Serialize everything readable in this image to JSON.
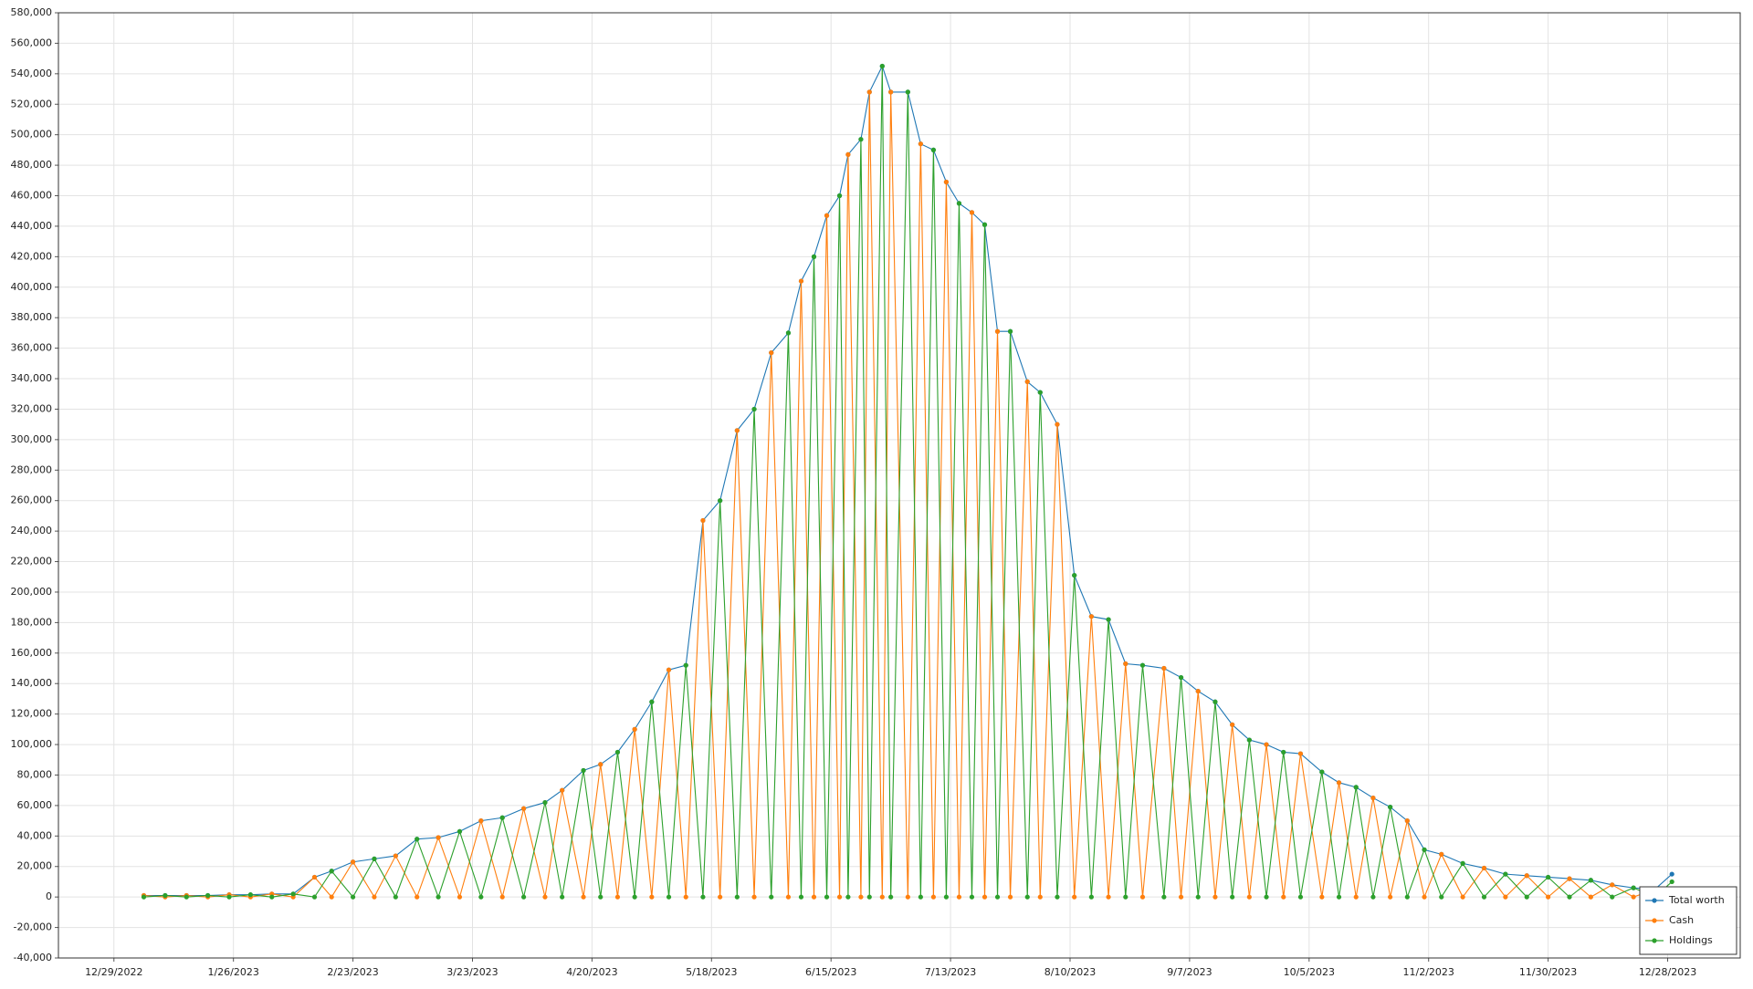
{
  "chart_data": {
    "type": "line",
    "x": [
      "1/5/2023",
      "1/10/2023",
      "1/15/2023",
      "1/20/2023",
      "1/25/2023",
      "1/30/2023",
      "2/4/2023",
      "2/9/2023",
      "2/14/2023",
      "2/18/2023",
      "2/23/2023",
      "2/28/2023",
      "3/5/2023",
      "3/10/2023",
      "3/15/2023",
      "3/20/2023",
      "3/25/2023",
      "3/30/2023",
      "4/4/2023",
      "4/9/2023",
      "4/13/2023",
      "4/18/2023",
      "4/22/2023",
      "4/26/2023",
      "4/30/2023",
      "5/4/2023",
      "5/8/2023",
      "5/12/2023",
      "5/16/2023",
      "5/20/2023",
      "5/24/2023",
      "5/28/2023",
      "6/1/2023",
      "6/5/2023",
      "6/8/2023",
      "6/11/2023",
      "6/14/2023",
      "6/17/2023",
      "6/19/2023",
      "6/22/2023",
      "6/24/2023",
      "6/27/2023",
      "6/29/2023",
      "7/3/2023",
      "7/6/2023",
      "7/9/2023",
      "7/12/2023",
      "7/15/2023",
      "7/18/2023",
      "7/21/2023",
      "7/24/2023",
      "7/27/2023",
      "7/31/2023",
      "8/3/2023",
      "8/7/2023",
      "8/11/2023",
      "8/15/2023",
      "8/19/2023",
      "8/23/2023",
      "8/27/2023",
      "9/1/2023",
      "9/5/2023",
      "9/9/2023",
      "9/13/2023",
      "9/17/2023",
      "9/21/2023",
      "9/25/2023",
      "9/29/2023",
      "10/3/2023",
      "10/8/2023",
      "10/12/2023",
      "10/16/2023",
      "10/20/2023",
      "10/24/2023",
      "10/28/2023",
      "11/1/2023",
      "11/5/2023",
      "11/10/2023",
      "11/15/2023",
      "11/20/2023",
      "11/25/2023",
      "11/30/2023",
      "12/5/2023",
      "12/10/2023",
      "12/15/2023",
      "12/20/2023",
      "12/25/2023",
      "12/29/2023"
    ],
    "series": [
      {
        "name": "Total worth",
        "color": "#1f77b4",
        "values": [
          1000,
          1000,
          1000,
          1000,
          1500,
          1500,
          2000,
          2000,
          13000,
          17000,
          23000,
          25000,
          27000,
          38000,
          39000,
          43000,
          50000,
          52000,
          58000,
          62000,
          70000,
          83000,
          87000,
          95000,
          110000,
          128000,
          149000,
          152000,
          247000,
          260000,
          306000,
          320000,
          357000,
          370000,
          404000,
          420000,
          447000,
          460000,
          487000,
          497000,
          528000,
          545000,
          528000,
          528000,
          494000,
          490000,
          469000,
          455000,
          449000,
          441000,
          371000,
          371000,
          338000,
          331000,
          310000,
          211000,
          184000,
          182000,
          153000,
          152000,
          150000,
          144000,
          135000,
          128000,
          113000,
          103000,
          100000,
          95000,
          94000,
          82000,
          75000,
          72000,
          65000,
          59000,
          50000,
          31000,
          28000,
          22000,
          19000,
          15000,
          14000,
          13000,
          12000,
          11000,
          8000,
          6000,
          5000,
          15000
        ]
      },
      {
        "name": "Cash",
        "color": "#ff7f0e",
        "values": [
          1000,
          0,
          1000,
          0,
          1500,
          0,
          2000,
          0,
          13000,
          0,
          23000,
          0,
          27000,
          0,
          39000,
          0,
          50000,
          0,
          58000,
          0,
          70000,
          0,
          87000,
          0,
          110000,
          0,
          149000,
          0,
          247000,
          0,
          306000,
          0,
          357000,
          0,
          404000,
          0,
          447000,
          0,
          487000,
          0,
          528000,
          0,
          528000,
          0,
          494000,
          0,
          469000,
          0,
          449000,
          0,
          371000,
          0,
          338000,
          0,
          310000,
          0,
          184000,
          0,
          153000,
          0,
          150000,
          0,
          135000,
          0,
          113000,
          0,
          100000,
          0,
          94000,
          0,
          75000,
          0,
          65000,
          0,
          50000,
          0,
          28000,
          0,
          19000,
          0,
          14000,
          0,
          12000,
          0,
          8000,
          0,
          5000,
          5000
        ]
      },
      {
        "name": "Holdings",
        "color": "#2ca02c",
        "values": [
          0,
          1000,
          0,
          1000,
          0,
          1500,
          0,
          2000,
          0,
          17000,
          0,
          25000,
          0,
          38000,
          0,
          43000,
          0,
          52000,
          0,
          62000,
          0,
          83000,
          0,
          95000,
          0,
          128000,
          0,
          152000,
          0,
          260000,
          0,
          320000,
          0,
          370000,
          0,
          420000,
          0,
          460000,
          0,
          497000,
          0,
          545000,
          0,
          528000,
          0,
          490000,
          0,
          455000,
          0,
          441000,
          0,
          371000,
          0,
          331000,
          0,
          211000,
          0,
          182000,
          0,
          152000,
          0,
          144000,
          0,
          128000,
          0,
          103000,
          0,
          95000,
          0,
          82000,
          0,
          72000,
          0,
          59000,
          0,
          31000,
          0,
          22000,
          0,
          15000,
          0,
          13000,
          0,
          11000,
          0,
          6000,
          0,
          10000
        ]
      }
    ],
    "xlim": [
      "12/16/2022",
      "1/14/2024"
    ],
    "xticks": [
      "12/29/2022",
      "1/26/2023",
      "2/23/2023",
      "3/23/2023",
      "4/20/2023",
      "5/18/2023",
      "6/15/2023",
      "7/13/2023",
      "8/10/2023",
      "9/7/2023",
      "10/5/2023",
      "11/2/2023",
      "11/30/2023",
      "12/28/2023"
    ],
    "ylim": [
      -40000,
      580000
    ],
    "yticks": [
      {
        "value": -40000,
        "label": "-40,000"
      },
      {
        "value": -20000,
        "label": "-20,000"
      },
      0,
      {
        "value": 20000,
        "label": "20,000"
      },
      {
        "value": 40000,
        "label": "40,000"
      },
      {
        "value": 60000,
        "label": "60,000"
      },
      {
        "value": 80000,
        "label": "80,000"
      },
      {
        "value": 100000,
        "label": "100,000"
      },
      {
        "value": 120000,
        "label": "120,000"
      },
      {
        "value": 140000,
        "label": "140,000"
      },
      {
        "value": 160000,
        "label": "160,000"
      },
      {
        "value": 180000,
        "label": "180,000"
      },
      {
        "value": 200000,
        "label": "200,000"
      },
      {
        "value": 220000,
        "label": "220,000"
      },
      {
        "value": 240000,
        "label": "240,000"
      },
      {
        "value": 260000,
        "label": "260,000"
      },
      {
        "value": 280000,
        "label": "280,000"
      },
      {
        "value": 300000,
        "label": "300,000"
      },
      {
        "value": 320000,
        "label": "320,000"
      },
      {
        "value": 340000,
        "label": "340,000"
      },
      {
        "value": 360000,
        "label": "360,000"
      },
      {
        "value": 380000,
        "label": "380,000"
      },
      {
        "value": 400000,
        "label": "400,000"
      },
      {
        "value": 420000,
        "label": "420,000"
      },
      {
        "value": 440000,
        "label": "440,000"
      },
      {
        "value": 460000,
        "label": "460,000"
      },
      {
        "value": 480000,
        "label": "480,000"
      },
      {
        "value": 500000,
        "label": "500,000"
      },
      {
        "value": 520000,
        "label": "520,000"
      },
      {
        "value": 540000,
        "label": "540,000"
      },
      {
        "value": 560000,
        "label": "560,000"
      },
      {
        "value": 580000,
        "label": "580,000"
      }
    ],
    "grid": true,
    "legend": "lower right"
  }
}
